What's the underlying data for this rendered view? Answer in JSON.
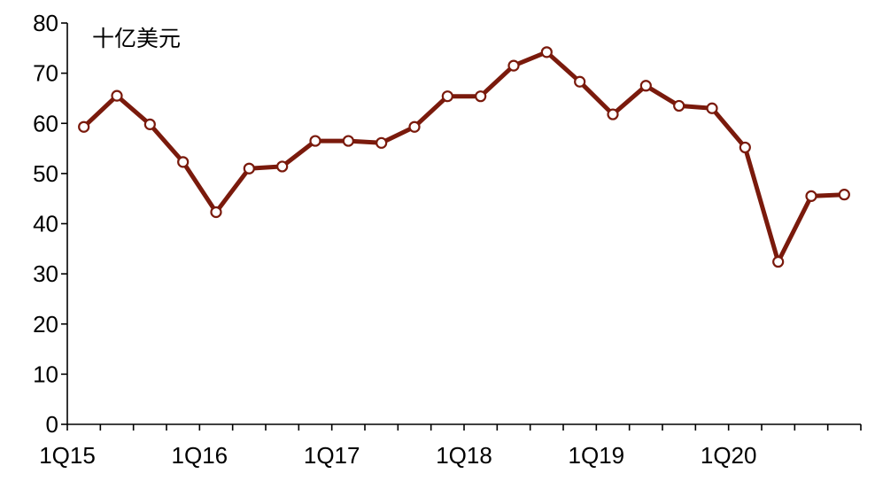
{
  "chart_data": {
    "type": "line",
    "unit_label": "十亿美元",
    "ylim": [
      0,
      80
    ],
    "y_ticks": [
      0,
      10,
      20,
      30,
      40,
      50,
      60,
      70,
      80
    ],
    "x_tick_labels": [
      "1Q15",
      "1Q16",
      "1Q17",
      "1Q18",
      "1Q19",
      "1Q20"
    ],
    "categories": [
      "1Q15",
      "2Q15",
      "3Q15",
      "4Q15",
      "1Q16",
      "2Q16",
      "3Q16",
      "4Q16",
      "1Q17",
      "2Q17",
      "3Q17",
      "4Q17",
      "1Q18",
      "2Q18",
      "3Q18",
      "4Q18",
      "1Q19",
      "2Q19",
      "3Q19",
      "4Q19",
      "1Q20",
      "2Q20",
      "3Q20",
      "4Q20"
    ],
    "series": [
      {
        "values": [
          59.3,
          65.5,
          59.8,
          52.3,
          42.3,
          51.0,
          51.4,
          56.5,
          56.5,
          56.1,
          59.3,
          65.4,
          65.4,
          71.5,
          74.2,
          68.3,
          61.8,
          67.5,
          63.5,
          63.0,
          55.2,
          32.4,
          45.5,
          45.8
        ]
      }
    ],
    "grid": false,
    "legend": "none",
    "colors": {
      "line": "#7a1a0c",
      "axis": "#000000",
      "marker_fill": "#ffffff"
    }
  }
}
